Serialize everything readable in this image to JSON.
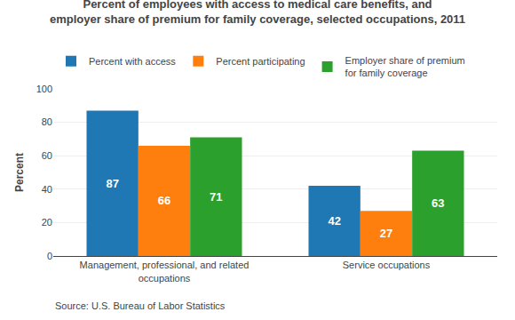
{
  "chart_data": {
    "type": "bar",
    "title": "Percent of employees with access to medical care benefits, and\nemployer share of premium for family coverage, selected occupations, 2011",
    "categories": [
      "Management, professional, and related\noccupations",
      "Service occupations"
    ],
    "series": [
      {
        "name": "Percent with access",
        "values": [
          87,
          42
        ]
      },
      {
        "name": "Percent participating",
        "values": [
          66,
          27
        ]
      },
      {
        "name": "Employer share of premium\nfor family coverage",
        "values": [
          71,
          63
        ]
      }
    ],
    "ylabel": "Percent",
    "ylim": [
      0,
      100
    ],
    "yticks": [
      0,
      20,
      40,
      60,
      80,
      100
    ],
    "grid": true,
    "legend": "upper left",
    "data_labels": true,
    "annotations": [
      "Source: U.S. Bureau of Labor Statistics"
    ]
  }
}
